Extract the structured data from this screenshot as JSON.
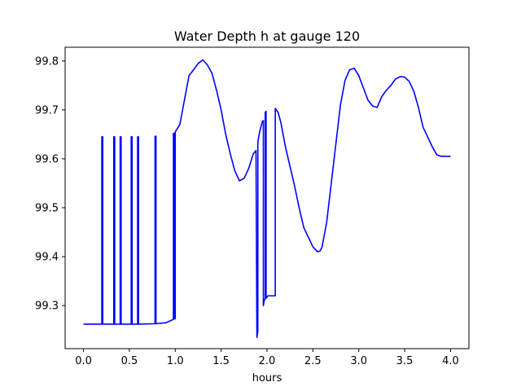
{
  "chart_data": {
    "type": "line",
    "title": "Water Depth h at gauge 120",
    "xlabel": "hours",
    "ylabel": "",
    "xlim": [
      -0.2,
      4.2
    ],
    "ylim": [
      99.212,
      99.828
    ],
    "xticks": [
      0.0,
      0.5,
      1.0,
      1.5,
      2.0,
      2.5,
      3.0,
      3.5,
      4.0
    ],
    "xtick_labels": [
      "0.0",
      "0.5",
      "1.0",
      "1.5",
      "2.0",
      "2.5",
      "3.0",
      "3.5",
      "4.0"
    ],
    "yticks": [
      99.3,
      99.4,
      99.5,
      99.6,
      99.7,
      99.8
    ],
    "ytick_labels": [
      "99.3",
      "99.4",
      "99.5",
      "99.6",
      "99.7",
      "99.8"
    ],
    "grid": false,
    "legend": "none",
    "series": [
      {
        "color": "#0000ff",
        "x": [
          0.0,
          0.2,
          0.2,
          0.21,
          0.21,
          0.33,
          0.33,
          0.34,
          0.34,
          0.4,
          0.4,
          0.41,
          0.41,
          0.52,
          0.52,
          0.53,
          0.53,
          0.59,
          0.59,
          0.6,
          0.6,
          0.78,
          0.78,
          0.79,
          0.79,
          0.9,
          0.96,
          0.98,
          0.98,
          0.99,
          0.99,
          1.0,
          1.0,
          1.05,
          1.1,
          1.15,
          1.2,
          1.25,
          1.3,
          1.35,
          1.4,
          1.45,
          1.5,
          1.55,
          1.6,
          1.65,
          1.7,
          1.75,
          1.8,
          1.85,
          1.88,
          1.89,
          1.9,
          1.9,
          1.91,
          1.92,
          1.95,
          1.96,
          1.96,
          1.97,
          1.98,
          1.98,
          1.99,
          1.99,
          2.0,
          2.0,
          2.01,
          2.04,
          2.08,
          2.09,
          2.09,
          2.12,
          2.15,
          2.2,
          2.25,
          2.3,
          2.35,
          2.4,
          2.45,
          2.5,
          2.55,
          2.58,
          2.6,
          2.65,
          2.7,
          2.75,
          2.8,
          2.85,
          2.9,
          2.95,
          3.0,
          3.05,
          3.1,
          3.15,
          3.2,
          3.25,
          3.3,
          3.35,
          3.4,
          3.45,
          3.5,
          3.55,
          3.6,
          3.65,
          3.7,
          3.75,
          3.8,
          3.85,
          3.9,
          3.95,
          4.0
        ],
        "y": [
          99.262,
          99.262,
          99.645,
          99.645,
          99.262,
          99.262,
          99.645,
          99.645,
          99.262,
          99.262,
          99.645,
          99.645,
          99.262,
          99.262,
          99.645,
          99.645,
          99.262,
          99.262,
          99.645,
          99.645,
          99.262,
          99.263,
          99.646,
          99.646,
          99.263,
          99.265,
          99.27,
          99.272,
          99.652,
          99.652,
          99.273,
          99.273,
          99.655,
          99.67,
          99.72,
          99.77,
          99.782,
          99.795,
          99.802,
          99.792,
          99.775,
          99.74,
          99.7,
          99.65,
          99.61,
          99.575,
          99.555,
          99.56,
          99.58,
          99.61,
          99.617,
          99.235,
          99.248,
          99.635,
          99.645,
          99.655,
          99.677,
          99.678,
          99.3,
          99.31,
          99.315,
          99.695,
          99.697,
          99.315,
          99.317,
          99.318,
          99.32,
          99.32,
          99.32,
          99.32,
          99.703,
          99.695,
          99.675,
          99.625,
          99.585,
          99.545,
          99.5,
          99.46,
          99.44,
          99.42,
          99.41,
          99.412,
          99.42,
          99.47,
          99.55,
          99.63,
          99.71,
          99.76,
          99.782,
          99.785,
          99.77,
          99.745,
          99.72,
          99.708,
          99.705,
          99.727,
          99.74,
          99.75,
          99.763,
          99.768,
          99.767,
          99.758,
          99.738,
          99.705,
          99.665,
          99.645,
          99.625,
          99.608,
          99.605,
          99.605,
          99.605
        ]
      }
    ]
  }
}
